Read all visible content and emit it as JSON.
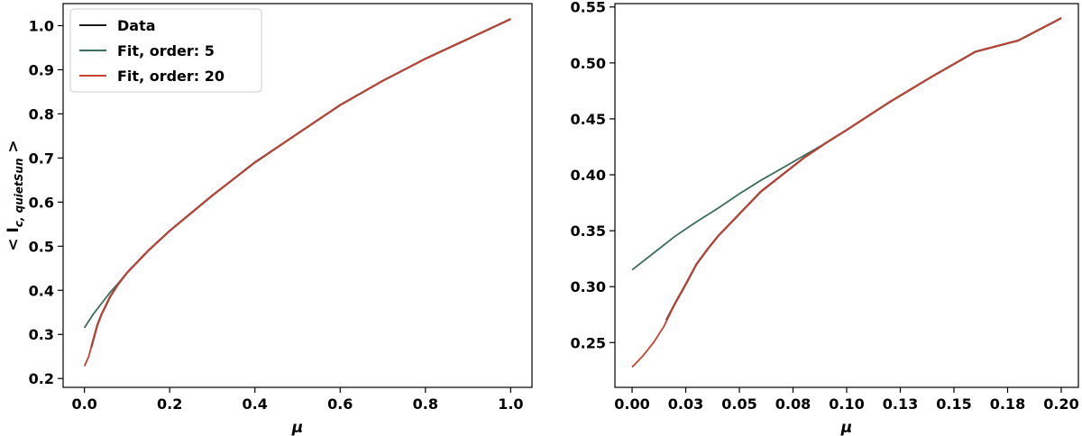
{
  "chart_data": [
    {
      "type": "line",
      "title": "",
      "xlabel": "μ",
      "ylabel": "< I",
      "ylabel_subscript": "c, quietSun",
      "ylabel_suffix": " >",
      "xlim": [
        -0.05,
        1.05
      ],
      "ylim": [
        0.18,
        1.05
      ],
      "xticks": [
        0.0,
        0.2,
        0.4,
        0.6,
        0.8,
        1.0
      ],
      "xtick_labels": [
        "0.0",
        "0.2",
        "0.4",
        "0.6",
        "0.8",
        "1.0"
      ],
      "yticks": [
        0.2,
        0.3,
        0.4,
        0.5,
        0.6,
        0.7,
        0.8,
        0.9,
        1.0
      ],
      "ytick_labels": [
        "0.2",
        "0.3",
        "0.4",
        "0.5",
        "0.6",
        "0.7",
        "0.8",
        "0.9",
        "1.0"
      ],
      "grid": false,
      "legend_position": "top-left",
      "series": [
        {
          "name": "Data",
          "color": "#1a1a1a",
          "x": [
            0.016,
            0.02,
            0.03,
            0.04,
            0.05,
            0.06,
            0.07,
            0.08,
            0.1,
            0.15,
            0.2,
            0.3,
            0.4,
            0.5,
            0.6,
            0.7,
            0.8,
            0.9,
            1.0
          ],
          "y": [
            0.27,
            0.285,
            0.32,
            0.345,
            0.365,
            0.385,
            0.4,
            0.415,
            0.44,
            0.49,
            0.535,
            0.615,
            0.69,
            0.755,
            0.82,
            0.875,
            0.925,
            0.97,
            1.015
          ]
        },
        {
          "name": "Fit, order: 5",
          "color": "#3a6e5f",
          "x": [
            0.0,
            0.02,
            0.04,
            0.06,
            0.08,
            0.1,
            0.15,
            0.2,
            0.3,
            0.4,
            0.5,
            0.6,
            0.7,
            0.8,
            0.9,
            1.0
          ],
          "y": [
            0.315,
            0.345,
            0.37,
            0.395,
            0.417,
            0.44,
            0.49,
            0.535,
            0.615,
            0.69,
            0.755,
            0.82,
            0.875,
            0.925,
            0.97,
            1.015
          ]
        },
        {
          "name": "Fit, order: 20",
          "color": "#c94030",
          "x": [
            0.0,
            0.01,
            0.02,
            0.03,
            0.04,
            0.05,
            0.06,
            0.07,
            0.08,
            0.1,
            0.15,
            0.2,
            0.3,
            0.4,
            0.5,
            0.6,
            0.7,
            0.8,
            0.9,
            1.0
          ],
          "y": [
            0.228,
            0.25,
            0.285,
            0.32,
            0.345,
            0.365,
            0.385,
            0.4,
            0.415,
            0.44,
            0.49,
            0.535,
            0.615,
            0.69,
            0.755,
            0.82,
            0.875,
            0.925,
            0.97,
            1.015
          ]
        }
      ]
    },
    {
      "type": "line",
      "title": "",
      "xlabel": "μ",
      "ylabel": "",
      "xlim": [
        -0.008,
        0.208
      ],
      "ylim": [
        0.21,
        0.553
      ],
      "xticks": [
        0.0,
        0.025,
        0.05,
        0.075,
        0.1,
        0.125,
        0.15,
        0.175,
        0.2
      ],
      "xtick_labels": [
        "0.00",
        "0.03",
        "0.05",
        "0.08",
        "0.10",
        "0.13",
        "0.15",
        "0.18",
        "0.20"
      ],
      "yticks": [
        0.25,
        0.3,
        0.35,
        0.4,
        0.45,
        0.5,
        0.55
      ],
      "ytick_labels": [
        "0.25",
        "0.30",
        "0.35",
        "0.40",
        "0.45",
        "0.50",
        "0.55"
      ],
      "grid": false,
      "series": [
        {
          "color": "#1a1a1a",
          "x": [
            0.016,
            0.02,
            0.025,
            0.03,
            0.035,
            0.04,
            0.045,
            0.05,
            0.06,
            0.07,
            0.08,
            0.09,
            0.1,
            0.12,
            0.14,
            0.16,
            0.18,
            0.2
          ],
          "y": [
            0.27,
            0.285,
            0.302,
            0.32,
            0.333,
            0.345,
            0.355,
            0.365,
            0.385,
            0.4,
            0.415,
            0.428,
            0.44,
            0.465,
            0.488,
            0.51,
            0.52,
            0.54
          ]
        },
        {
          "color": "#3a6e5f",
          "x": [
            0.0,
            0.01,
            0.02,
            0.03,
            0.04,
            0.05,
            0.06,
            0.07,
            0.08,
            0.09,
            0.1,
            0.12,
            0.14,
            0.16,
            0.18,
            0.2
          ],
          "y": [
            0.315,
            0.33,
            0.345,
            0.358,
            0.37,
            0.383,
            0.395,
            0.406,
            0.417,
            0.428,
            0.44,
            0.465,
            0.488,
            0.51,
            0.52,
            0.54
          ]
        },
        {
          "color": "#c94030",
          "x": [
            0.0,
            0.005,
            0.01,
            0.015,
            0.02,
            0.025,
            0.03,
            0.035,
            0.04,
            0.045,
            0.05,
            0.06,
            0.07,
            0.08,
            0.09,
            0.1,
            0.12,
            0.14,
            0.16,
            0.18,
            0.2
          ],
          "y": [
            0.228,
            0.238,
            0.25,
            0.265,
            0.285,
            0.302,
            0.32,
            0.333,
            0.345,
            0.355,
            0.365,
            0.385,
            0.4,
            0.415,
            0.428,
            0.44,
            0.465,
            0.488,
            0.51,
            0.52,
            0.54
          ]
        }
      ]
    }
  ]
}
